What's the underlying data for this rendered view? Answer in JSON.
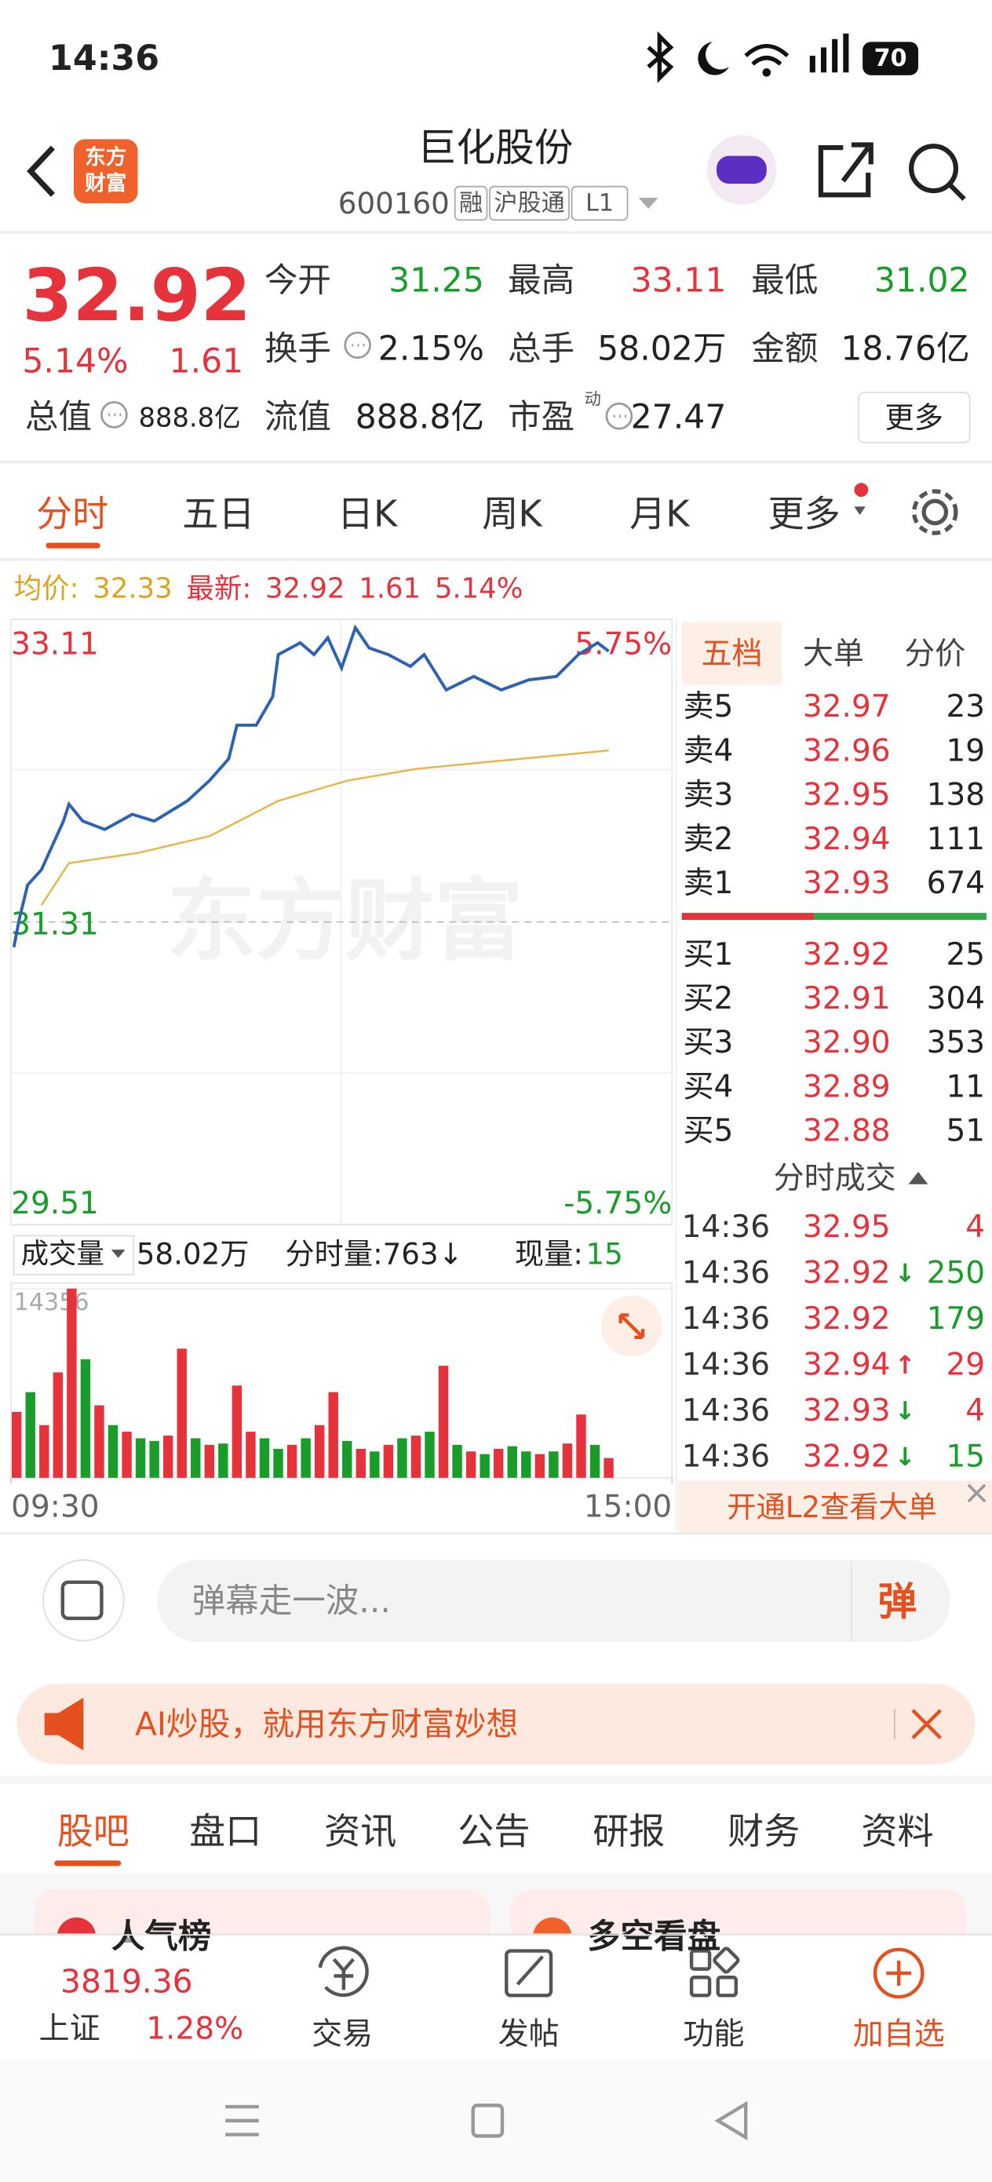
{
  "status_bar": {
    "time": "14:36",
    "battery": "70"
  },
  "header": {
    "logo": [
      "东方",
      "财富"
    ],
    "title": "巨化股份",
    "code": "600160",
    "tags": [
      "融",
      "沪股通",
      "L1"
    ]
  },
  "quote": {
    "price": "32.92",
    "change_pct": "5.14%",
    "change": "1.61",
    "stats": [
      {
        "label": "今开",
        "value": "31.25"
      },
      {
        "label": "最高",
        "value": "33.11"
      },
      {
        "label": "最低",
        "value": "31.02"
      },
      {
        "label": "换手",
        "value": "2.15%"
      },
      {
        "label": "总手",
        "value": "58.02万"
      },
      {
        "label": "金额",
        "value": "18.76亿"
      },
      {
        "label": "总值",
        "value": "888.8亿"
      },
      {
        "label": "流值",
        "value": "888.8亿"
      },
      {
        "label": "市盈",
        "sup": "动",
        "value": "27.47"
      }
    ],
    "more": "更多"
  },
  "chart_tabs": [
    "分时",
    "五日",
    "日K",
    "周K",
    "月K",
    "更多"
  ],
  "summary": {
    "avg_label": "均价:",
    "avg": "32.33",
    "latest_label": "最新:",
    "latest": "32.92",
    "change": "1.61",
    "change_pct": "5.14%"
  },
  "chart_data": [
    {
      "type": "line",
      "watermark": "东方财富",
      "ylim": [
        29.51,
        33.11
      ],
      "yticks": [
        29.51,
        31.31,
        33.11
      ],
      "right_labels": [
        "-5.75%",
        "5.75%"
      ],
      "xlim": [
        0,
        240
      ],
      "xticks": [
        {
          "value": 0,
          "label": "09:30"
        },
        {
          "value": 240,
          "label": "15:00"
        }
      ],
      "series": [
        {
          "color": "#2d62b3",
          "x": [
            1,
            3,
            6,
            11,
            19,
            21,
            26,
            34,
            44,
            52,
            64,
            72,
            79,
            82,
            89,
            95,
            97,
            105,
            110,
            115,
            120,
            125,
            130,
            137,
            145,
            150,
            158,
            168,
            178,
            188,
            198,
            206,
            213,
            217
          ],
          "values": [
            31.16,
            31.33,
            31.53,
            31.62,
            31.91,
            32.01,
            31.91,
            31.86,
            31.95,
            31.91,
            32.03,
            32.15,
            32.28,
            32.48,
            32.48,
            32.65,
            32.9,
            32.97,
            32.9,
            33.0,
            32.82,
            33.06,
            32.94,
            32.9,
            32.83,
            32.9,
            32.69,
            32.77,
            32.69,
            32.75,
            32.77,
            32.9,
            32.97,
            32.92
          ]
        },
        {
          "color": "#e8b54a",
          "x": [
            11,
            21,
            46,
            72,
            97,
            122,
            147,
            172,
            198,
            217
          ],
          "values": [
            31.41,
            31.66,
            31.72,
            31.82,
            32.03,
            32.15,
            32.22,
            32.26,
            32.3,
            32.33
          ]
        }
      ]
    },
    {
      "type": "bar",
      "title": "成交量",
      "total": "58.02万",
      "tick_volume": "分时量:763↓",
      "current_label": "现量:",
      "current": "15",
      "ylim": [
        0,
        14356
      ],
      "yticks": [
        14356
      ],
      "x": [
        2,
        7,
        12,
        17,
        22,
        27,
        32,
        37,
        42,
        47,
        52,
        57,
        62,
        67,
        72,
        77,
        82,
        87,
        92,
        97,
        102,
        107,
        112,
        117,
        122,
        127,
        132,
        137,
        142,
        147,
        152,
        157,
        162,
        167,
        172,
        177,
        182,
        187,
        192,
        197,
        202,
        207,
        212,
        217
      ],
      "values": [
        5000,
        6500,
        4000,
        8000,
        14356,
        9000,
        5500,
        4000,
        3500,
        3000,
        2800,
        3200,
        9800,
        3000,
        2500,
        2600,
        7000,
        3500,
        3000,
        2200,
        2500,
        3000,
        4000,
        6500,
        2800,
        2200,
        2000,
        2500,
        3000,
        3200,
        3500,
        8500,
        2500,
        2000,
        1800,
        2200,
        2400,
        2000,
        1800,
        2000,
        2600,
        4800,
        2500,
        1500
      ],
      "colors": [
        "#e5323b",
        "#1a9c2b",
        "#e5323b",
        "#e5323b",
        "#e5323b",
        "#1a9c2b",
        "#e5323b",
        "#1a9c2b",
        "#e5323b",
        "#1a9c2b",
        "#1a9c2b",
        "#e5323b",
        "#e5323b",
        "#1a9c2b",
        "#e5323b",
        "#1a9c2b",
        "#e5323b",
        "#e5323b",
        "#1a9c2b",
        "#1a9c2b",
        "#e5323b",
        "#1a9c2b",
        "#e5323b",
        "#e5323b",
        "#1a9c2b",
        "#e5323b",
        "#1a9c2b",
        "#e5323b",
        "#1a9c2b",
        "#e5323b",
        "#1a9c2b",
        "#e5323b",
        "#1a9c2b",
        "#e5323b",
        "#1a9c2b",
        "#e5323b",
        "#1a9c2b",
        "#1a9c2b",
        "#e5323b",
        "#1a9c2b",
        "#e5323b",
        "#e5323b",
        "#1a9c2b",
        "#e5323b"
      ]
    }
  ],
  "order_book": {
    "tabs": [
      "五档",
      "大单",
      "分价"
    ],
    "asks": [
      {
        "label": "卖5",
        "price": "32.97",
        "volume": "23"
      },
      {
        "label": "卖4",
        "price": "32.96",
        "volume": "19"
      },
      {
        "label": "卖3",
        "price": "32.95",
        "volume": "138"
      },
      {
        "label": "卖2",
        "price": "32.94",
        "volume": "111"
      },
      {
        "label": "卖1",
        "price": "32.93",
        "volume": "674"
      }
    ],
    "bids": [
      {
        "label": "买1",
        "price": "32.92",
        "volume": "25"
      },
      {
        "label": "买2",
        "price": "32.91",
        "volume": "304"
      },
      {
        "label": "买3",
        "price": "32.90",
        "volume": "353"
      },
      {
        "label": "买4",
        "price": "32.89",
        "volume": "11"
      },
      {
        "label": "买5",
        "price": "32.88",
        "volume": "51"
      }
    ],
    "trades_title": "分时成交",
    "trades": [
      {
        "time": "14:36",
        "price": "32.95",
        "volume": "4"
      },
      {
        "time": "14:36",
        "price": "32.92",
        "arrow": "↓",
        "volume": "250"
      },
      {
        "time": "14:36",
        "price": "32.92",
        "volume": "179"
      },
      {
        "time": "14:36",
        "price": "32.94",
        "arrow": "↑",
        "volume": "29"
      },
      {
        "time": "14:36",
        "price": "32.93",
        "arrow": "↓",
        "volume": "4"
      },
      {
        "time": "14:36",
        "price": "32.92",
        "arrow": "↓",
        "volume": "15"
      }
    ],
    "promo": "开通L2查看大单"
  },
  "danmaku": {
    "placeholder": "弹幕走一波...",
    "button": "弹"
  },
  "banner": "AI炒股，就用东方财富妙想",
  "section_tabs": [
    "股吧",
    "盘口",
    "资讯",
    "公告",
    "研报",
    "财务",
    "资料"
  ],
  "cards": [
    "人气榜",
    "多空看盘"
  ],
  "bottom_nav": {
    "index_value": "3819.36",
    "index_name": "上证",
    "index_change": "1.28%",
    "items": [
      "交易",
      "发帖",
      "功能",
      "加自选"
    ]
  }
}
